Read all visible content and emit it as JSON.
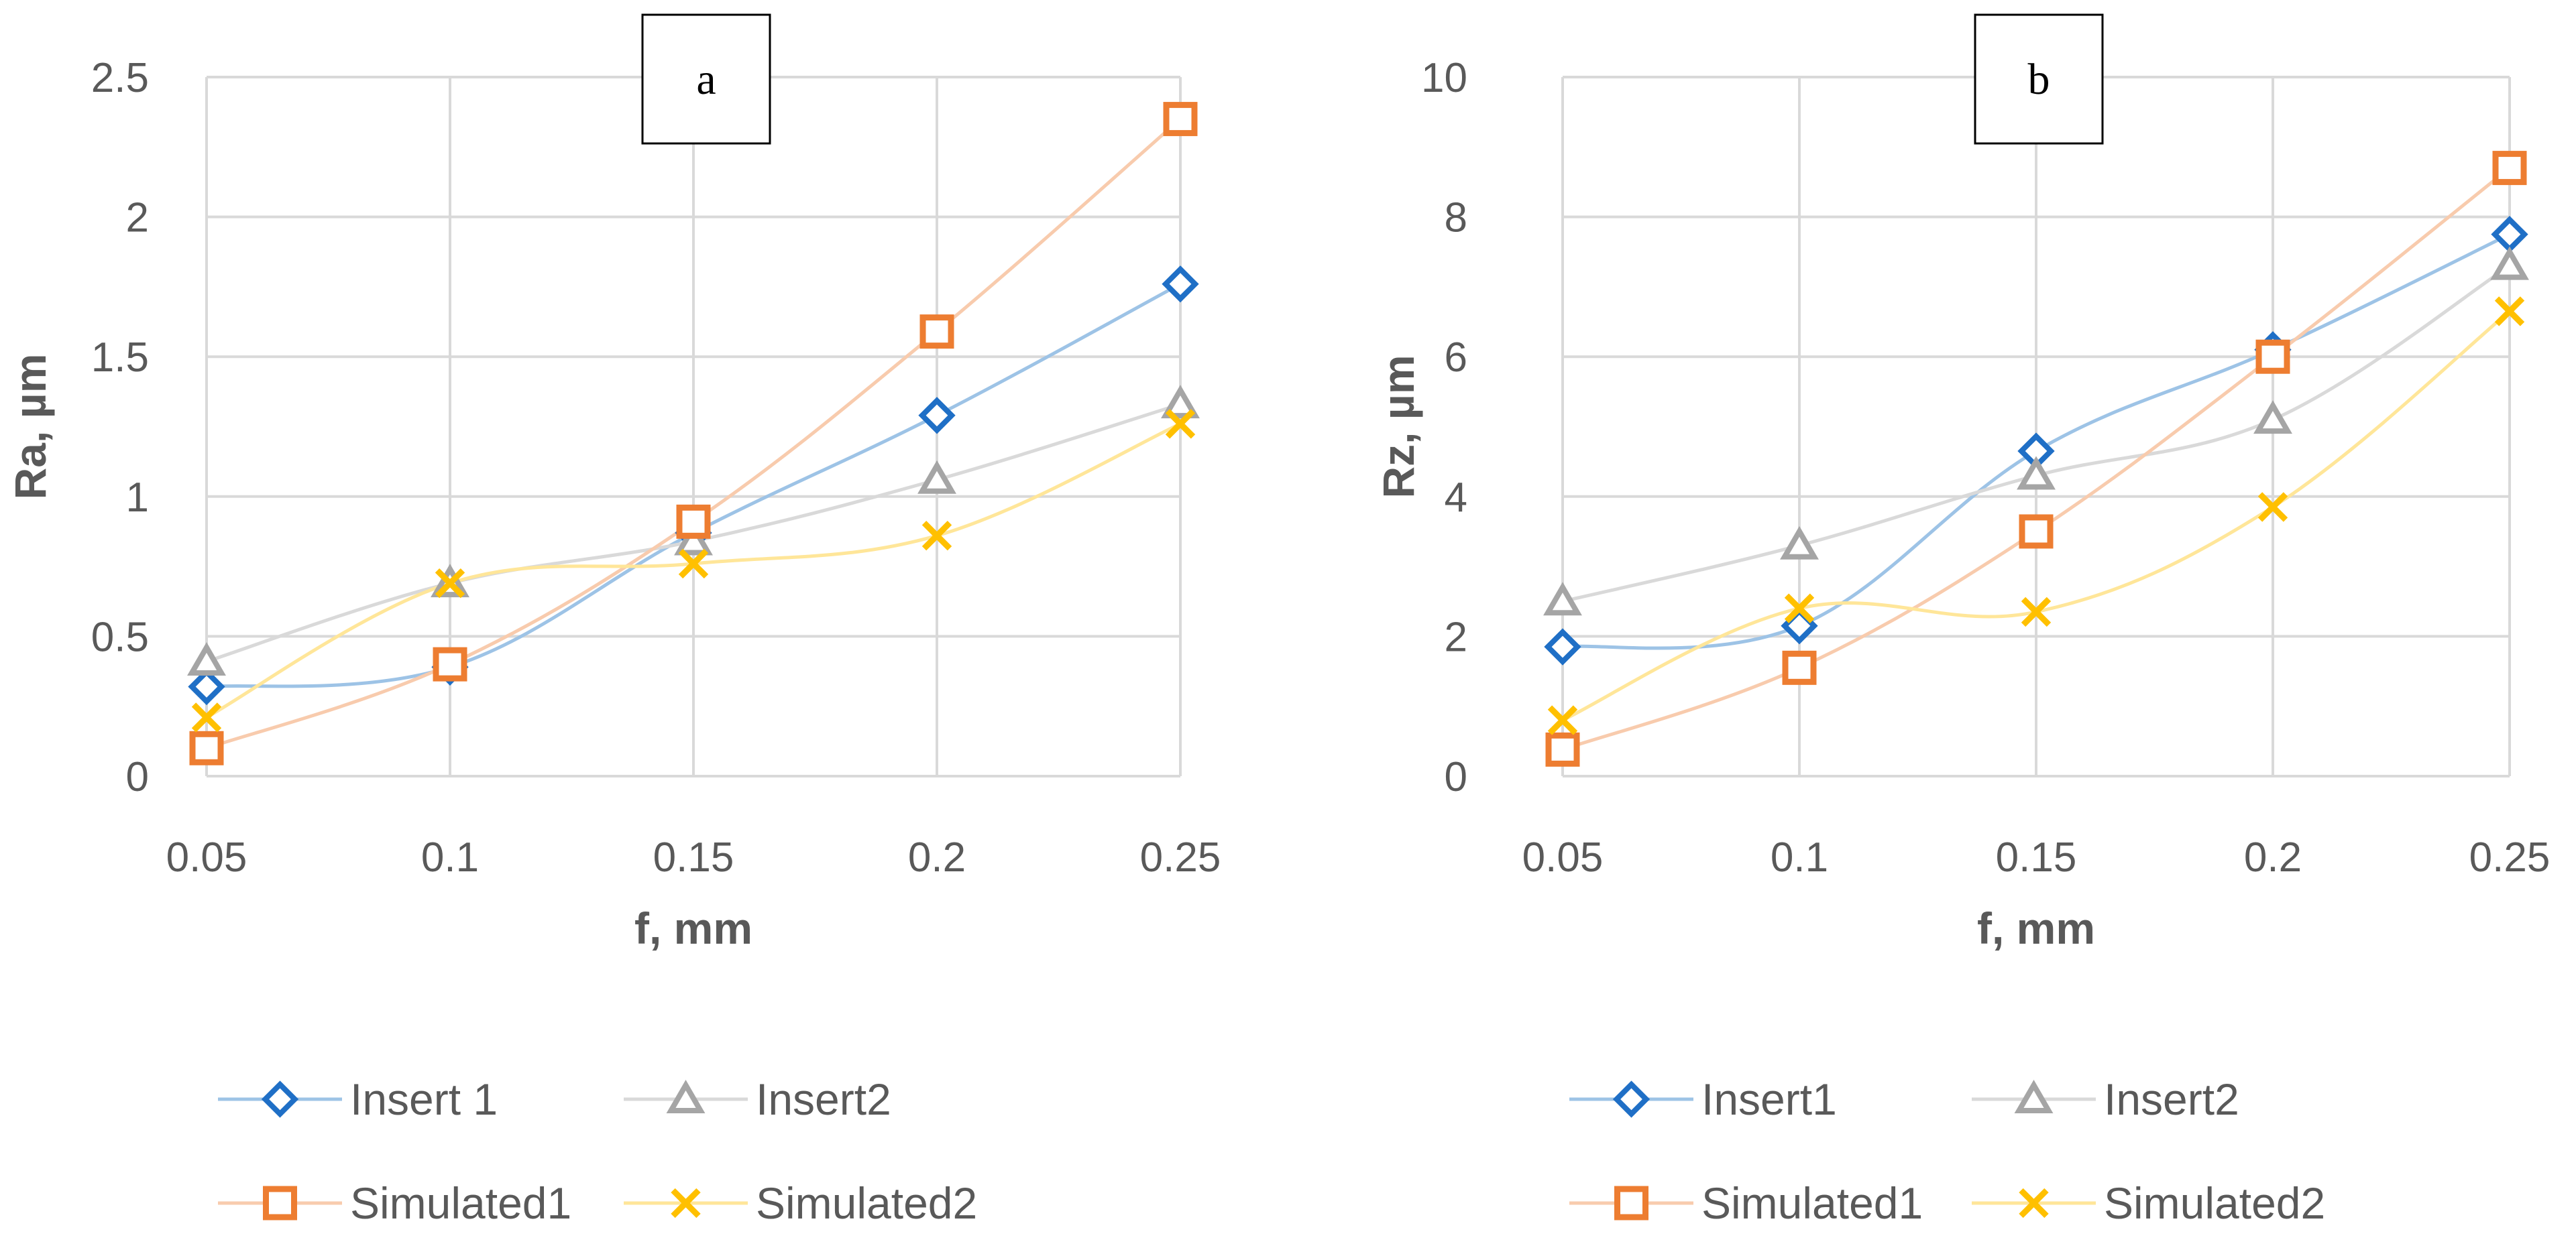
{
  "chart_data": [
    {
      "type": "line",
      "panel_label": "a",
      "title": "",
      "xlabel": "f, mm",
      "ylabel": "Ra, µm",
      "categories": [
        "0.05",
        "0.1",
        "0.15",
        "0.2",
        "0.25"
      ],
      "ylim": [
        0,
        2.5
      ],
      "yticks": [
        "0",
        "0.5",
        "1",
        "1.5",
        "2",
        "2.5"
      ],
      "grid": true,
      "legend_position": "bottom",
      "series": [
        {
          "name": "Insert 1",
          "marker": "diamond",
          "color": "#1f6fc6",
          "line_color": "#9dc3e6",
          "values": [
            0.32,
            0.39,
            0.87,
            1.29,
            1.76
          ]
        },
        {
          "name": "Insert2",
          "marker": "triangle",
          "color": "#a5a5a5",
          "line_color": "#d9d9d9",
          "values": [
            0.41,
            0.69,
            0.84,
            1.06,
            1.33
          ]
        },
        {
          "name": "Simulated1",
          "marker": "square",
          "color": "#ed7d31",
          "line_color": "#f8cbad",
          "values": [
            0.1,
            0.4,
            0.91,
            1.59,
            2.35
          ]
        },
        {
          "name": "Simulated2",
          "marker": "x",
          "color": "#ffc000",
          "line_color": "#ffe699",
          "values": [
            0.21,
            0.69,
            0.76,
            0.86,
            1.26
          ]
        }
      ]
    },
    {
      "type": "line",
      "panel_label": "b",
      "title": "",
      "xlabel": "f, mm",
      "ylabel": "Rz, µm",
      "categories": [
        "0.05",
        "0.1",
        "0.15",
        "0.2",
        "0.25"
      ],
      "ylim": [
        0,
        10
      ],
      "yticks": [
        "0",
        "2",
        "4",
        "6",
        "8",
        "10"
      ],
      "grid": true,
      "legend_position": "bottom",
      "series": [
        {
          "name": "Insert1",
          "marker": "diamond",
          "color": "#1f6fc6",
          "line_color": "#9dc3e6",
          "values": [
            1.85,
            2.15,
            4.65,
            6.1,
            7.75
          ]
        },
        {
          "name": "Insert2",
          "marker": "triangle",
          "color": "#a5a5a5",
          "line_color": "#d9d9d9",
          "values": [
            2.5,
            3.3,
            4.3,
            5.1,
            7.3
          ]
        },
        {
          "name": "Simulated1",
          "marker": "square",
          "color": "#ed7d31",
          "line_color": "#f8cbad",
          "values": [
            0.38,
            1.55,
            3.5,
            6.0,
            8.7
          ]
        },
        {
          "name": "Simulated2",
          "marker": "x",
          "color": "#ffc000",
          "line_color": "#ffe699",
          "values": [
            0.8,
            2.4,
            2.35,
            3.85,
            6.65
          ]
        }
      ]
    }
  ]
}
